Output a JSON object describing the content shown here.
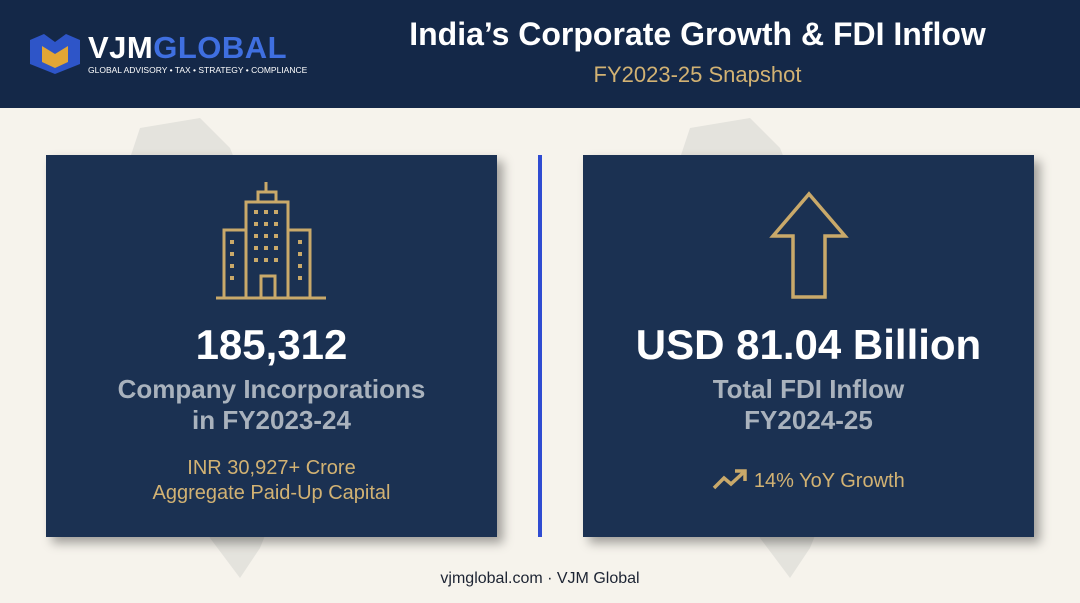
{
  "header": {
    "logo": {
      "part1": "VJM",
      "part2": "GLOBAL",
      "tagline": "GLOBAL ADVISORY • TAX • STRATEGY • COMPLIANCE"
    },
    "title": "India’s Corporate Growth & FDI Inflow",
    "subtitle": "FY2023-25 Snapshot"
  },
  "cards": [
    {
      "headline": "185,312",
      "label_lines": [
        "Company Incorporations",
        "in FY2023-24"
      ],
      "note_lines": [
        "INR 30,927+ Crore",
        "Aggregate Paid-Up Capital"
      ]
    },
    {
      "headline": "USD 81.04 Billion",
      "label_lines": [
        "Total FDI Inflow",
        "FY2024-25"
      ],
      "note_lines": [
        "14% YoY Growth"
      ]
    }
  ],
  "footer": "vjmglobal.com · VJM Global"
}
